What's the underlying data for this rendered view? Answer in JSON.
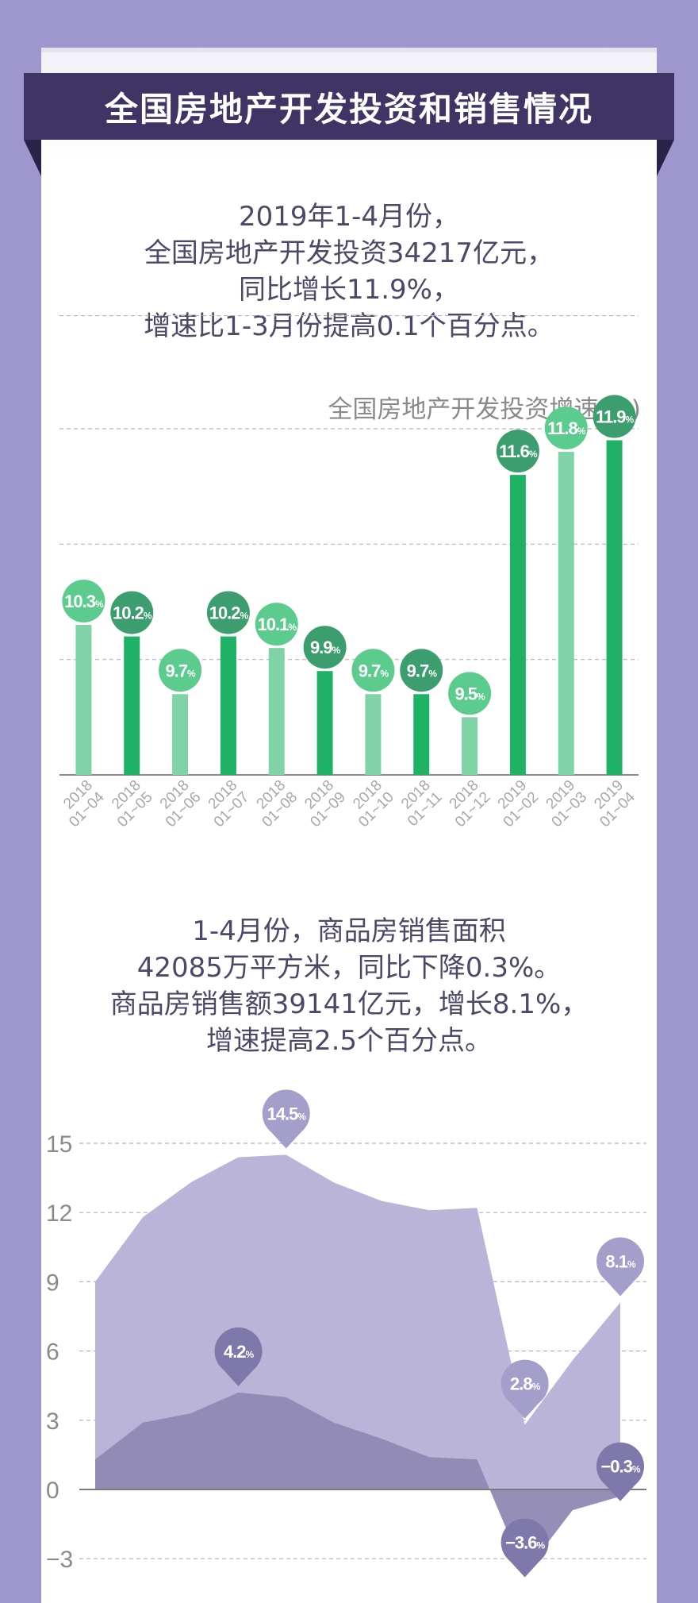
{
  "header": {
    "title": "全国房地产开发投资和销售情况"
  },
  "intro": {
    "lines": [
      "2019年1-4月份，",
      "全国房地产开发投资34217亿元，",
      "同比增长11.9%，",
      "增速比1-3月份提高0.1个百分点。"
    ]
  },
  "sales_text": {
    "lines": [
      "1-4月份，商品房销售面积",
      "42085万平方米，同比下降0.3%。",
      "商品房销售额39141亿元，增长8.1%，",
      "增速提高2.5个百分点。"
    ]
  },
  "colors": {
    "bar_light": "#7fd3a6",
    "bar_dark": "#1fb166",
    "badge_light": "#5ccb8e",
    "badge_dark": "#3c9e6e",
    "area_outer": "#bab5d8",
    "area_inner": "#8f89b4",
    "pin_light": "#a49ecb",
    "pin_dark": "#7f78ab"
  },
  "chart_data": [
    {
      "type": "bar",
      "title": "全国房地产开发投资增速(%)",
      "categories": [
        [
          "2018",
          "01~04"
        ],
        [
          "2018",
          "01~05"
        ],
        [
          "2018",
          "01~06"
        ],
        [
          "2018",
          "01~07"
        ],
        [
          "2018",
          "01~08"
        ],
        [
          "2018",
          "01~09"
        ],
        [
          "2018",
          "01~10"
        ],
        [
          "2018",
          "01~11"
        ],
        [
          "2018",
          "01~12"
        ],
        [
          "2019",
          "01~02"
        ],
        [
          "2019",
          "01~03"
        ],
        [
          "2019",
          "01~04"
        ]
      ],
      "values": [
        10.3,
        10.2,
        9.7,
        10.2,
        10.1,
        9.9,
        9.7,
        9.7,
        9.5,
        11.6,
        11.8,
        11.9
      ],
      "value_labels": [
        "10.3",
        "10.2",
        "9.7",
        "10.2",
        "10.1",
        "9.9",
        "9.7",
        "9.7",
        "9.5",
        "11.6",
        "11.8",
        "11.9"
      ],
      "shade": [
        "light",
        "dark",
        "light",
        "dark",
        "light",
        "dark",
        "light",
        "dark",
        "light",
        "dark",
        "light",
        "dark"
      ],
      "unit": "%",
      "ylim": [
        9.0,
        12.0
      ],
      "grid": true
    },
    {
      "type": "area",
      "x_count": 12,
      "yticks": [
        "15",
        "12",
        "9",
        "6",
        "3",
        "0",
        "−3"
      ],
      "ytick_values": [
        15,
        12,
        9,
        6,
        3,
        0,
        -3
      ],
      "ylim": [
        -3,
        15
      ],
      "grid": true,
      "unit": "%",
      "series": [
        {
          "shade": "outer",
          "values": [
            9.0,
            11.8,
            13.3,
            14.4,
            14.5,
            13.3,
            12.5,
            12.1,
            12.2,
            2.8,
            5.6,
            8.1
          ],
          "labels": [
            {
              "index": 4,
              "text": "14.5"
            },
            {
              "index": 9,
              "text": "2.8"
            },
            {
              "index": 11,
              "text": "8.1"
            }
          ]
        },
        {
          "shade": "inner",
          "values": [
            1.3,
            2.9,
            3.3,
            4.2,
            4.0,
            2.9,
            2.2,
            1.4,
            1.3,
            -3.6,
            -0.9,
            -0.3
          ],
          "labels": [
            {
              "index": 3,
              "text": "4.2"
            },
            {
              "index": 9,
              "text": "−3.6"
            },
            {
              "index": 11,
              "text": "−0.3"
            }
          ]
        }
      ]
    }
  ]
}
